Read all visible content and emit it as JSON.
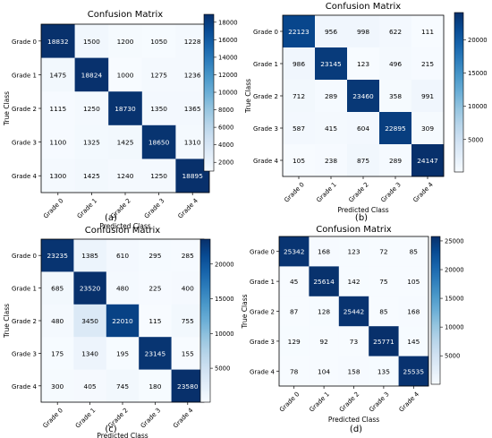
{
  "chart_data": [
    {
      "type": "heatmap",
      "panel_label": "(a)",
      "title": "Confusion Matrix",
      "xlabel": "Predicted Class",
      "ylabel": "True Class",
      "x_categories": [
        "Grade 0",
        "Grade 1",
        "Grade 2",
        "Grade 3",
        "Grade 4"
      ],
      "y_categories": [
        "Grade 0",
        "Grade 1",
        "Grade 2",
        "Grade 3",
        "Grade 4"
      ],
      "values": [
        [
          18832,
          1500,
          1200,
          1050,
          1228
        ],
        [
          1475,
          18824,
          1000,
          1275,
          1236
        ],
        [
          1115,
          1250,
          18730,
          1350,
          1365
        ],
        [
          1100,
          1325,
          1425,
          18650,
          1310
        ],
        [
          1300,
          1425,
          1240,
          1250,
          18895
        ]
      ],
      "colorbar_ticks": [
        2000,
        4000,
        6000,
        8000,
        10000,
        12000,
        14000,
        16000,
        18000
      ],
      "colorbar_range": [
        1000,
        18900
      ],
      "colormap": "Blues"
    },
    {
      "type": "heatmap",
      "panel_label": "(b)",
      "title": "Confusion Matrix",
      "xlabel": "Predicted Class",
      "ylabel": "True Class",
      "x_categories": [
        "Grade 0",
        "Grade 1",
        "Grade 2",
        "Grade 3",
        "Grade 4"
      ],
      "y_categories": [
        "Grade 0",
        "Grade 1",
        "Grade 2",
        "Grade 3",
        "Grade 4"
      ],
      "values": [
        [
          22123,
          956,
          998,
          622,
          111
        ],
        [
          986,
          23145,
          123,
          496,
          215
        ],
        [
          712,
          289,
          23460,
          358,
          991
        ],
        [
          587,
          415,
          604,
          22895,
          309
        ],
        [
          105,
          238,
          875,
          289,
          24147
        ]
      ],
      "colorbar_ticks": [
        5000,
        10000,
        15000,
        20000
      ],
      "colorbar_range": [
        105,
        24147
      ],
      "colormap": "Blues"
    },
    {
      "type": "heatmap",
      "panel_label": "(c)",
      "title": "Confusion Matrix",
      "xlabel": "Predicted Class",
      "ylabel": "True Class",
      "x_categories": [
        "Grade 0",
        "Grade 1",
        "Grade 2",
        "Grade 3",
        "Grade 4"
      ],
      "y_categories": [
        "Grade 0",
        "Grade 1",
        "Grade 2",
        "Grade 3",
        "Grade 4"
      ],
      "values": [
        [
          23235,
          1385,
          610,
          295,
          285
        ],
        [
          685,
          23520,
          480,
          225,
          400
        ],
        [
          480,
          3450,
          22010,
          115,
          755
        ],
        [
          175,
          1340,
          195,
          23145,
          155
        ],
        [
          300,
          405,
          745,
          180,
          23580
        ]
      ],
      "colorbar_ticks": [
        5000,
        10000,
        15000,
        20000
      ],
      "colorbar_range": [
        115,
        23580
      ],
      "colormap": "Blues"
    },
    {
      "type": "heatmap",
      "panel_label": "(d)",
      "title": "Confusion Matrix",
      "xlabel": "Predicted Class",
      "ylabel": "True Class",
      "x_categories": [
        "Grade 0",
        "Grade 1",
        "Grade 2",
        "Grade 3",
        "Grade 4"
      ],
      "y_categories": [
        "Grade 0",
        "Grade 1",
        "Grade 2",
        "Grade 3",
        "Grade 4"
      ],
      "values": [
        [
          25342,
          168,
          123,
          72,
          85
        ],
        [
          45,
          25614,
          142,
          75,
          105
        ],
        [
          87,
          128,
          25442,
          85,
          168
        ],
        [
          129,
          92,
          73,
          25771,
          145
        ],
        [
          78,
          104,
          158,
          135,
          25535
        ]
      ],
      "colorbar_ticks": [
        5000,
        10000,
        15000,
        20000,
        25000
      ],
      "colorbar_range": [
        45,
        25771
      ],
      "colormap": "Blues"
    }
  ]
}
